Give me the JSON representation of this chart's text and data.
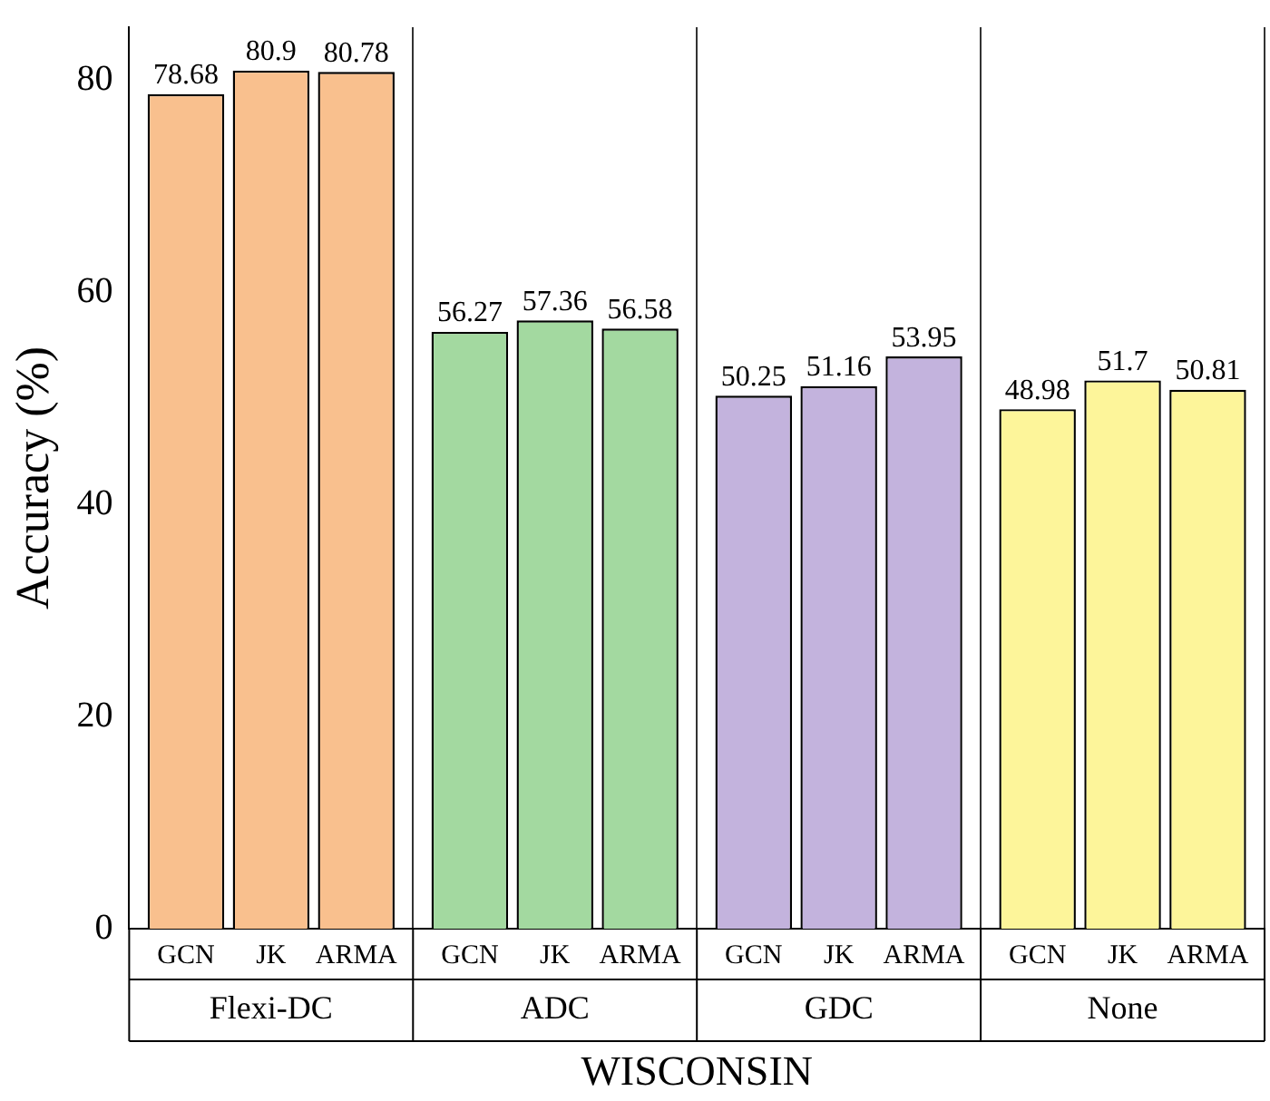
{
  "chart_data": {
    "type": "bar",
    "xlabel": "WISCONSIN",
    "ylabel": "Accuracy (%)",
    "categories": [
      "Flexi-DC",
      "ADC",
      "GDC",
      "None"
    ],
    "series": [
      {
        "name": "GCN",
        "colors": [
          "#f9c08e",
          "#a3d9a0",
          "#c3b3dd",
          "#fdf59a"
        ],
        "values": [
          78.68,
          56.27,
          50.25,
          48.98
        ]
      },
      {
        "name": "JK",
        "colors": [
          "#f9c08e",
          "#a3d9a0",
          "#c3b3dd",
          "#fdf59a"
        ],
        "values": [
          80.9,
          57.36,
          51.16,
          51.7
        ]
      },
      {
        "name": "ARMA",
        "colors": [
          "#f9c08e",
          "#a3d9a0",
          "#c3b3dd",
          "#fdf59a"
        ],
        "values": [
          80.78,
          56.58,
          53.95,
          50.81
        ]
      }
    ],
    "ylim": [
      0,
      85
    ],
    "yticks": [
      0,
      20,
      40,
      60,
      80
    ],
    "grid": "x",
    "data_labels": true
  }
}
